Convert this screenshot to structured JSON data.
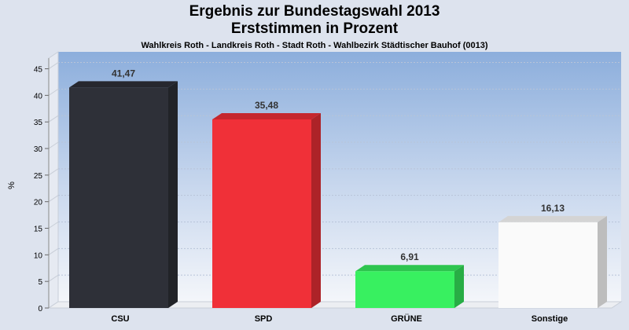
{
  "chart_data": {
    "type": "bar",
    "title_line1": "Ergebnis zur Bundestagswahl 2013",
    "title_line2": "Erststimmen in Prozent",
    "subtitle": "Wahlkreis Roth - Landkreis Roth - Stadt Roth - Wahlbezirk Städtischer Bauhof (0013)",
    "ylabel": "%",
    "ylim": [
      0,
      47
    ],
    "yticks": [
      0,
      5,
      10,
      15,
      20,
      25,
      30,
      35,
      40,
      45
    ],
    "grid": true,
    "categories": [
      "CSU",
      "SPD",
      "GRÜNE",
      "Sonstige"
    ],
    "values": [
      41.47,
      35.48,
      6.91,
      16.13
    ],
    "value_labels": [
      "41,47",
      "35,48",
      "6,91",
      "16,13"
    ],
    "colors": [
      "#2e3038",
      "#f03038",
      "#38f060",
      "#fafafa"
    ]
  }
}
